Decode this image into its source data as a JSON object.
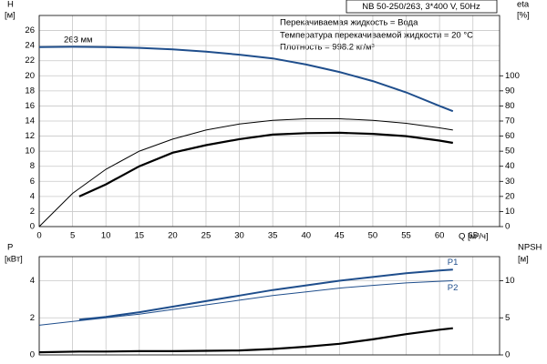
{
  "chart_data": [
    {
      "type": "line",
      "title": "NB 50-250/263, 3*400 V, 50Hz",
      "notes": [
        "Перекачиваемая жидкость = Вода",
        "Температура перекачиваемой жидкости = 20 °C",
        "Плотность = 998.2 кг/м³"
      ],
      "annotation": "263 мм",
      "xlabel": "Q [м³/ч]",
      "ylabel": "H",
      "ylabel_unit": "[м]",
      "y2label": "eta",
      "y2label_unit": "[%]",
      "xlim": [
        0,
        69
      ],
      "xticks": [
        0,
        5,
        10,
        15,
        20,
        25,
        30,
        35,
        40,
        45,
        50,
        55,
        60,
        65
      ],
      "ylim": [
        0,
        28
      ],
      "yticks": [
        0,
        2,
        4,
        6,
        8,
        10,
        12,
        14,
        16,
        18,
        20,
        22,
        24,
        26
      ],
      "y2lim": [
        0,
        140
      ],
      "y2ticks": [
        0,
        10,
        20,
        30,
        40,
        50,
        60,
        70,
        80,
        90,
        100
      ],
      "grid": true,
      "series": [
        {
          "color": "#1f4e8c",
          "width": 2,
          "x": [
            0,
            5,
            10,
            15,
            20,
            25,
            30,
            35,
            40,
            45,
            50,
            55,
            60,
            62
          ],
          "values": [
            23.8,
            23.85,
            23.8,
            23.7,
            23.5,
            23.2,
            22.8,
            22.3,
            21.5,
            20.5,
            19.3,
            17.8,
            16.0,
            15.3
          ]
        },
        {
          "color": "#000000",
          "width": 1,
          "axis": "y2",
          "x": [
            0,
            5,
            10,
            15,
            20,
            25,
            30,
            35,
            40,
            45,
            50,
            55,
            60,
            62
          ],
          "values": [
            0,
            22,
            38,
            50,
            58,
            64,
            68,
            70.5,
            71.5,
            71.5,
            70.5,
            68.5,
            65.5,
            64
          ]
        },
        {
          "color": "#000000",
          "width": 2.2,
          "axis": "y2",
          "x": [
            6,
            10,
            15,
            20,
            25,
            30,
            35,
            40,
            45,
            50,
            55,
            60,
            62
          ],
          "values": [
            20,
            28,
            40,
            49,
            54,
            58,
            61,
            62,
            62.2,
            61.5,
            60,
            57,
            55.5
          ]
        }
      ]
    },
    {
      "type": "line",
      "ylabel": "P",
      "ylabel_unit": "[кВт]",
      "y2label": "NPSH",
      "y2label_unit": "[м]",
      "xlim": [
        0,
        69
      ],
      "xticks": [
        0,
        5,
        10,
        15,
        20,
        25,
        30,
        35,
        40,
        45,
        50,
        55,
        60,
        65
      ],
      "ylim": [
        0,
        5.3
      ],
      "yticks": [
        0,
        2,
        4
      ],
      "y2lim": [
        0,
        13.25
      ],
      "y2ticks": [
        0,
        5,
        10
      ],
      "grid": true,
      "series": [
        {
          "name": "P1",
          "color": "#1f4e8c",
          "width": 2,
          "x": [
            6,
            10,
            15,
            20,
            25,
            30,
            35,
            40,
            45,
            50,
            55,
            60,
            62
          ],
          "values": [
            1.9,
            2.05,
            2.3,
            2.6,
            2.9,
            3.2,
            3.5,
            3.75,
            4.0,
            4.2,
            4.4,
            4.55,
            4.6
          ]
        },
        {
          "name": "P2",
          "color": "#1f4e8c",
          "width": 1,
          "x": [
            0,
            5,
            10,
            15,
            20,
            25,
            30,
            35,
            40,
            45,
            50,
            55,
            60,
            62
          ],
          "values": [
            1.6,
            1.8,
            2.0,
            2.2,
            2.45,
            2.7,
            2.95,
            3.2,
            3.4,
            3.6,
            3.75,
            3.88,
            3.97,
            4.0
          ]
        },
        {
          "color": "#000000",
          "width": 2.2,
          "axis": "y2",
          "x": [
            0,
            6,
            10,
            15,
            20,
            25,
            30,
            35,
            40,
            45,
            50,
            55,
            60,
            62
          ],
          "values": [
            0.35,
            0.45,
            0.45,
            0.5,
            0.5,
            0.55,
            0.6,
            0.8,
            1.1,
            1.5,
            2.1,
            2.8,
            3.4,
            3.6
          ]
        }
      ]
    }
  ]
}
